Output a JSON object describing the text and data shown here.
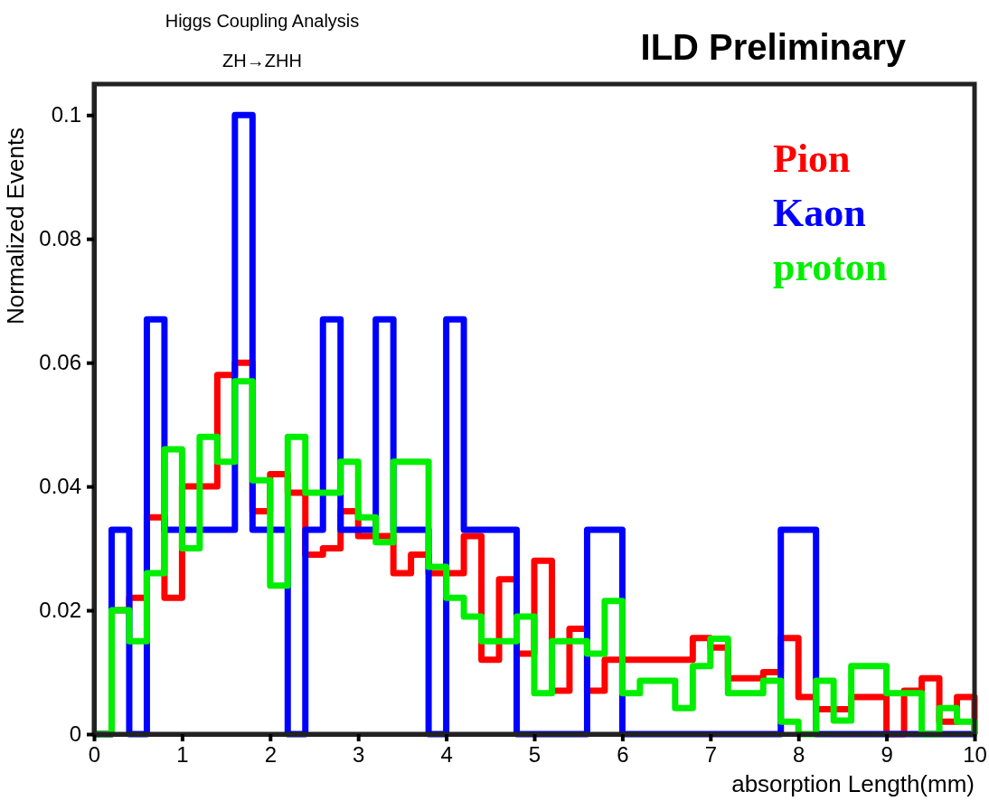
{
  "chart_data": {
    "type": "histogram",
    "title": "ILD Preliminary",
    "annotations": [
      "Higgs Coupling Analysis",
      "ZH→ZHH"
    ],
    "xlabel": "absorption Length(mm)",
    "ylabel": "Normalized Events",
    "bins": [
      0,
      0.2,
      0.4,
      0.6,
      0.8,
      1,
      1.2,
      1.4,
      1.6,
      1.8,
      2,
      2.2,
      2.4,
      2.6,
      2.8,
      3,
      3.2,
      3.4,
      3.6,
      3.8,
      4,
      4.2,
      4.4,
      4.6,
      4.8,
      5,
      5.2,
      5.4,
      5.6,
      5.8,
      6,
      6.2,
      6.4,
      6.6,
      6.8,
      7,
      7.2,
      7.4,
      7.6,
      7.8,
      8,
      8.2,
      8.4,
      8.6,
      8.8,
      9,
      9.2,
      9.4,
      9.6,
      9.8,
      10
    ],
    "series": [
      {
        "name": "Pion",
        "color": "#ff0000",
        "values": [
          0,
          0.02,
          0.022,
          0.035,
          0.022,
          0.04,
          0.04,
          0.058,
          0.06,
          0.036,
          0.042,
          0.039,
          0.029,
          0.03,
          0.036,
          0.032,
          0.032,
          0.026,
          0.029,
          0.026,
          0.026,
          0.032,
          0.012,
          0.025,
          0.013,
          0.028,
          0.007,
          0.017,
          0.007,
          0.012,
          0.012,
          0.012,
          0.012,
          0.012,
          0.0155,
          0.014,
          0.009,
          0.009,
          0.01,
          0.0155,
          0.006,
          0.004,
          0.004,
          0.006,
          0.006,
          0,
          0.007,
          0.009,
          0.002,
          0.006
        ]
      },
      {
        "name": "Kaon",
        "color": "#0000ff",
        "values": [
          0,
          0.033,
          0,
          0.067,
          0.033,
          0.033,
          0.033,
          0.033,
          0.1,
          0.033,
          0.033,
          0,
          0.033,
          0.067,
          0.033,
          0.033,
          0.067,
          0.033,
          0.033,
          0,
          0.067,
          0.033,
          0.033,
          0.033,
          0,
          0,
          0,
          0,
          0.033,
          0.033,
          0,
          0,
          0,
          0,
          0,
          0,
          0,
          0,
          0,
          0.033,
          0.033,
          0,
          0,
          0,
          0,
          0,
          0,
          0,
          0,
          0
        ]
      },
      {
        "name": "proton",
        "color": "#00ee00",
        "values": [
          0,
          0.02,
          0.015,
          0.026,
          0.046,
          0.03,
          0.048,
          0.044,
          0.057,
          0.041,
          0.024,
          0.048,
          0.039,
          0.039,
          0.044,
          0.035,
          0.031,
          0.044,
          0.044,
          0.027,
          0.022,
          0.019,
          0.015,
          0.015,
          0.019,
          0.0066,
          0.015,
          0.015,
          0.013,
          0.0215,
          0.0066,
          0.0086,
          0.0086,
          0.0042,
          0.011,
          0.0154,
          0.0066,
          0.0066,
          0.0086,
          0.002,
          0,
          0.0086,
          0.0022,
          0.011,
          0.011,
          0.0066,
          0.0066,
          0,
          0.0042,
          0.002
        ]
      }
    ],
    "xlim": [
      0,
      10
    ],
    "xticks": [
      0,
      1,
      2,
      3,
      4,
      5,
      6,
      7,
      8,
      9,
      10
    ],
    "ylim": [
      0,
      0.105
    ],
    "yticks": [
      0,
      0.02,
      0.04,
      0.06,
      0.08,
      0.1
    ],
    "grid": false,
    "legend": "top right"
  }
}
